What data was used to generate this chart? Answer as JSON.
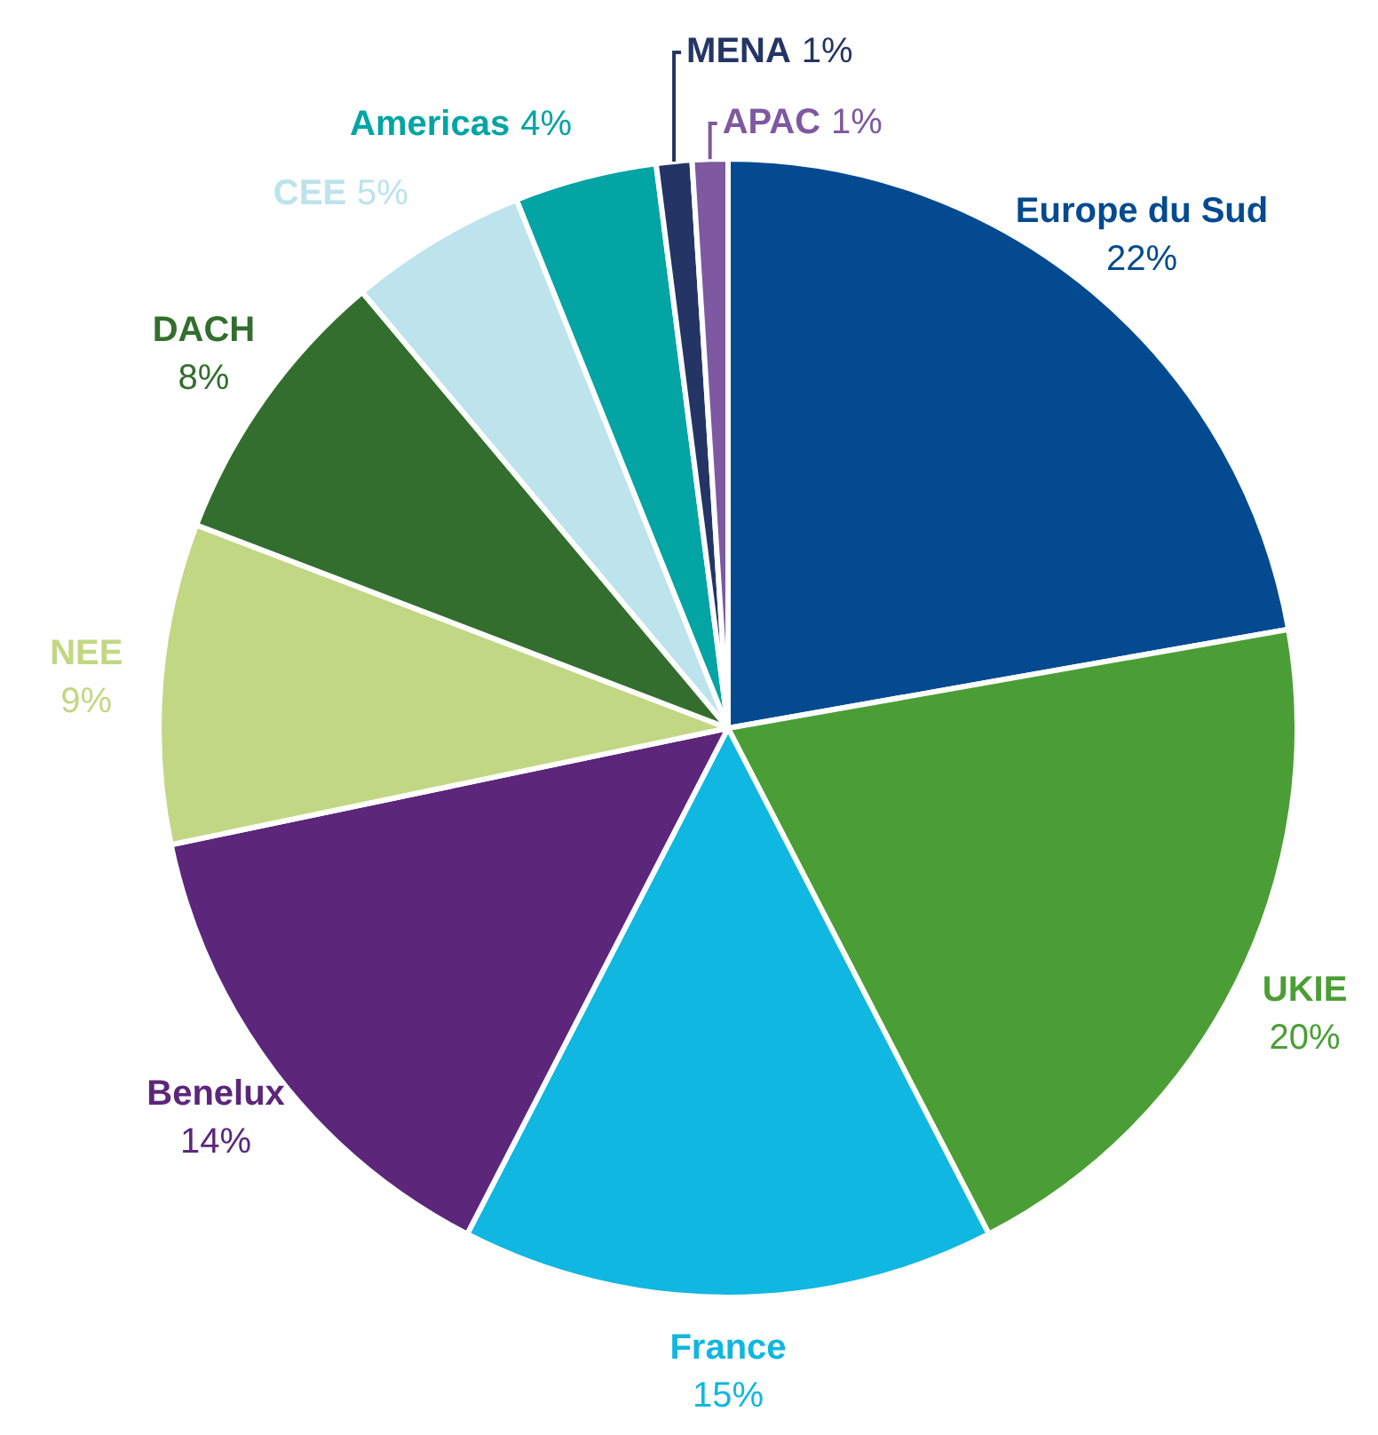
{
  "chart_data": {
    "type": "pie",
    "categories": [
      "Europe du Sud",
      "UKIE",
      "France",
      "Benelux",
      "NEE",
      "DACH",
      "CEE",
      "Americas",
      "MENA",
      "APAC"
    ],
    "values": [
      22,
      20,
      15,
      14,
      9,
      8,
      5,
      4,
      1,
      1
    ],
    "value_labels": [
      "22%",
      "20%",
      "15%",
      "14%",
      "9%",
      "8%",
      "5%",
      "4%",
      "1%",
      "1%"
    ],
    "colors": [
      "#034a91",
      "#4b9e35",
      "#10b7e0",
      "#5c267a",
      "#c2d784",
      "#336e2e",
      "#bde3ec",
      "#02a4a4",
      "#243565",
      "#7e58a0"
    ],
    "legend": false
  }
}
